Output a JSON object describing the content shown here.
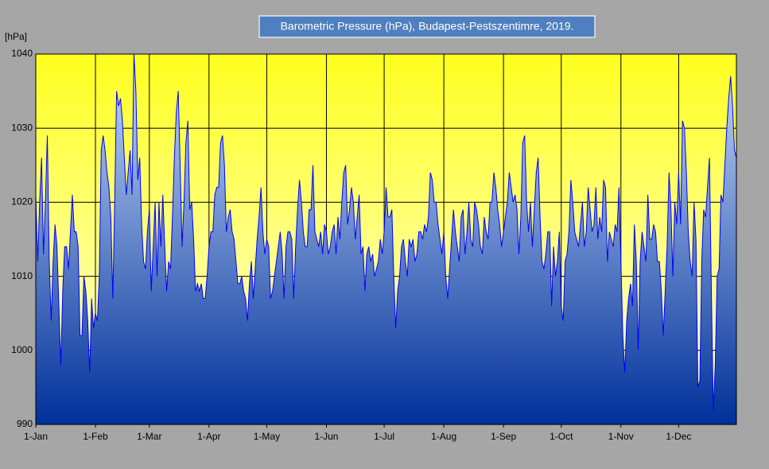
{
  "chart_data": {
    "type": "area-line",
    "title": "Barometric Pressure (hPa), Budapest-Pestszentimre, 2019.",
    "y_label": "[hPa]",
    "categories": [
      "1-Jan",
      null,
      null,
      null,
      null,
      null,
      null,
      null,
      null,
      null,
      null,
      null,
      null,
      null,
      null,
      null,
      null,
      null,
      null,
      null,
      null,
      null,
      null,
      null,
      null,
      null,
      null,
      null,
      null,
      null,
      null,
      "1-Feb",
      null,
      null,
      null,
      null,
      null,
      null,
      null,
      null,
      null,
      null,
      null,
      null,
      null,
      null,
      null,
      null,
      null,
      null,
      null,
      null,
      null,
      null,
      null,
      null,
      null,
      null,
      null,
      "1-Mar",
      null,
      null,
      null,
      null,
      null,
      null,
      null,
      null,
      null,
      null,
      null,
      null,
      null,
      null,
      null,
      null,
      null,
      null,
      null,
      null,
      null,
      null,
      null,
      null,
      null,
      null,
      null,
      null,
      null,
      null,
      "1-Apr",
      null,
      null,
      null,
      null,
      null,
      null,
      null,
      null,
      null,
      null,
      null,
      null,
      null,
      null,
      null,
      null,
      null,
      null,
      null,
      null,
      null,
      null,
      null,
      null,
      null,
      null,
      null,
      null,
      null,
      "1-May",
      null,
      null,
      null,
      null,
      null,
      null,
      null,
      null,
      null,
      null,
      null,
      null,
      null,
      null,
      null,
      null,
      null,
      null,
      null,
      null,
      null,
      null,
      null,
      null,
      null,
      null,
      null,
      null,
      null,
      null,
      "1-Jun",
      null,
      null,
      null,
      null,
      null,
      null,
      null,
      null,
      null,
      null,
      null,
      null,
      null,
      null,
      null,
      null,
      null,
      null,
      null,
      null,
      null,
      null,
      null,
      null,
      null,
      null,
      null,
      null,
      null,
      "1-Jul",
      null,
      null,
      null,
      null,
      null,
      null,
      null,
      null,
      null,
      null,
      null,
      null,
      null,
      null,
      null,
      null,
      null,
      null,
      null,
      null,
      null,
      null,
      null,
      null,
      null,
      null,
      null,
      null,
      null,
      null,
      "1-Aug",
      null,
      null,
      null,
      null,
      null,
      null,
      null,
      null,
      null,
      null,
      null,
      null,
      null,
      null,
      null,
      null,
      null,
      null,
      null,
      null,
      null,
      null,
      null,
      null,
      null,
      null,
      null,
      null,
      null,
      null,
      "1-Sep",
      null,
      null,
      null,
      null,
      null,
      null,
      null,
      null,
      null,
      null,
      null,
      null,
      null,
      null,
      null,
      null,
      null,
      null,
      null,
      null,
      null,
      null,
      null,
      null,
      null,
      null,
      null,
      null,
      null,
      "1-Oct",
      null,
      null,
      null,
      null,
      null,
      null,
      null,
      null,
      null,
      null,
      null,
      null,
      null,
      null,
      null,
      null,
      null,
      null,
      null,
      null,
      null,
      null,
      null,
      null,
      null,
      null,
      null,
      null,
      null,
      null,
      "1-Nov",
      null,
      null,
      null,
      null,
      null,
      null,
      null,
      null,
      null,
      null,
      null,
      null,
      null,
      null,
      null,
      null,
      null,
      null,
      null,
      null,
      null,
      null,
      null,
      null,
      null,
      null,
      null,
      null,
      null,
      "1-Dec",
      null,
      null,
      null,
      null,
      null,
      null,
      null,
      null,
      null,
      null,
      null,
      null,
      null,
      null,
      null,
      null,
      null,
      null,
      null,
      null,
      null,
      null,
      null,
      null,
      null,
      null,
      null,
      null,
      null,
      null
    ],
    "series": [
      {
        "color": "#0000ff",
        "values": [
          1021,
          1012,
          1020,
          1026,
          1013,
          1020,
          1029,
          1012,
          1004,
          1012,
          1017,
          1014,
          1006,
          998,
          1008,
          1014,
          1014,
          1011,
          1016,
          1021,
          1016,
          1016,
          1014,
          1002,
          1002,
          1010,
          1008,
          1004,
          997,
          1007,
          1003,
          1005,
          1004,
          1010,
          1027,
          1029,
          1027,
          1024,
          1022,
          1018,
          1007,
          1020,
          1035,
          1033,
          1034,
          1031,
          1026,
          1021,
          1024,
          1027,
          1021,
          1040,
          1035,
          1023,
          1026,
          1017,
          1012,
          1011,
          1016,
          1019,
          1008,
          1014,
          1020,
          1010,
          1020,
          1014,
          1021,
          1014,
          1008,
          1012,
          1011,
          1018,
          1026,
          1032,
          1035,
          1025,
          1014,
          1020,
          1028,
          1031,
          1019,
          1020,
          1015,
          1008,
          1009,
          1008,
          1009,
          1007,
          1007,
          1010,
          1014,
          1016,
          1016,
          1021,
          1022,
          1022,
          1028,
          1029,
          1025,
          1016,
          1018,
          1019,
          1016,
          1015,
          1012,
          1009,
          1009,
          1010,
          1008,
          1007,
          1004,
          1009,
          1012,
          1007,
          1011,
          1015,
          1018,
          1022,
          1016,
          1013,
          1015,
          1014,
          1007,
          1008,
          1010,
          1012,
          1014,
          1016,
          1013,
          1007,
          1014,
          1016,
          1016,
          1015,
          1007,
          1014,
          1019,
          1023,
          1020,
          1016,
          1014,
          1014,
          1019,
          1019,
          1025,
          1016,
          1015,
          1014,
          1016,
          1013,
          1017,
          1016,
          1013,
          1014,
          1016,
          1017,
          1013,
          1018,
          1015,
          1020,
          1024,
          1025,
          1017,
          1019,
          1022,
          1020,
          1015,
          1018,
          1021,
          1013,
          1014,
          1008,
          1013,
          1014,
          1012,
          1013,
          1010,
          1011,
          1012,
          1015,
          1013,
          1016,
          1022,
          1018,
          1018,
          1019,
          1010,
          1003,
          1008,
          1010,
          1014,
          1015,
          1012,
          1010,
          1015,
          1014,
          1015,
          1012,
          1013,
          1016,
          1016,
          1015,
          1017,
          1016,
          1018,
          1024,
          1023,
          1020,
          1020,
          1017,
          1015,
          1013,
          1016,
          1010,
          1007,
          1011,
          1015,
          1019,
          1016,
          1014,
          1012,
          1018,
          1019,
          1013,
          1016,
          1020,
          1015,
          1014,
          1020,
          1019,
          1017,
          1014,
          1013,
          1018,
          1016,
          1015,
          1020,
          1020,
          1024,
          1022,
          1019,
          1017,
          1014,
          1016,
          1018,
          1020,
          1024,
          1022,
          1020,
          1021,
          1019,
          1013,
          1018,
          1028,
          1029,
          1020,
          1016,
          1020,
          1014,
          1019,
          1024,
          1026,
          1018,
          1012,
          1011,
          1013,
          1016,
          1016,
          1006,
          1014,
          1010,
          1012,
          1016,
          1006,
          1004,
          1012,
          1013,
          1016,
          1023,
          1020,
          1016,
          1015,
          1014,
          1017,
          1020,
          1014,
          1016,
          1022,
          1019,
          1016,
          1017,
          1022,
          1015,
          1018,
          1016,
          1023,
          1022,
          1012,
          1016,
          1015,
          1014,
          1017,
          1016,
          1022,
          1012,
          1002,
          997,
          1004,
          1007,
          1009,
          1006,
          1017,
          1012,
          1000,
          1012,
          1016,
          1014,
          1012,
          1021,
          1015,
          1015,
          1017,
          1016,
          1012,
          1012,
          1008,
          1002,
          1008,
          1014,
          1024,
          1019,
          1010,
          1020,
          1017,
          1024,
          1017,
          1031,
          1030,
          1024,
          1016,
          1012,
          1010,
          1020,
          1015,
          995,
          996,
          1012,
          1019,
          1018,
          1022,
          1026,
          1008,
          992,
          998,
          1010,
          1011,
          1021,
          1020,
          1025,
          1030,
          1034,
          1037,
          1033,
          1027,
          1026
        ]
      }
    ],
    "ylim": [
      990,
      1040
    ],
    "yticks": [
      990,
      1000,
      1010,
      1020,
      1030,
      1040
    ],
    "grid": true
  }
}
